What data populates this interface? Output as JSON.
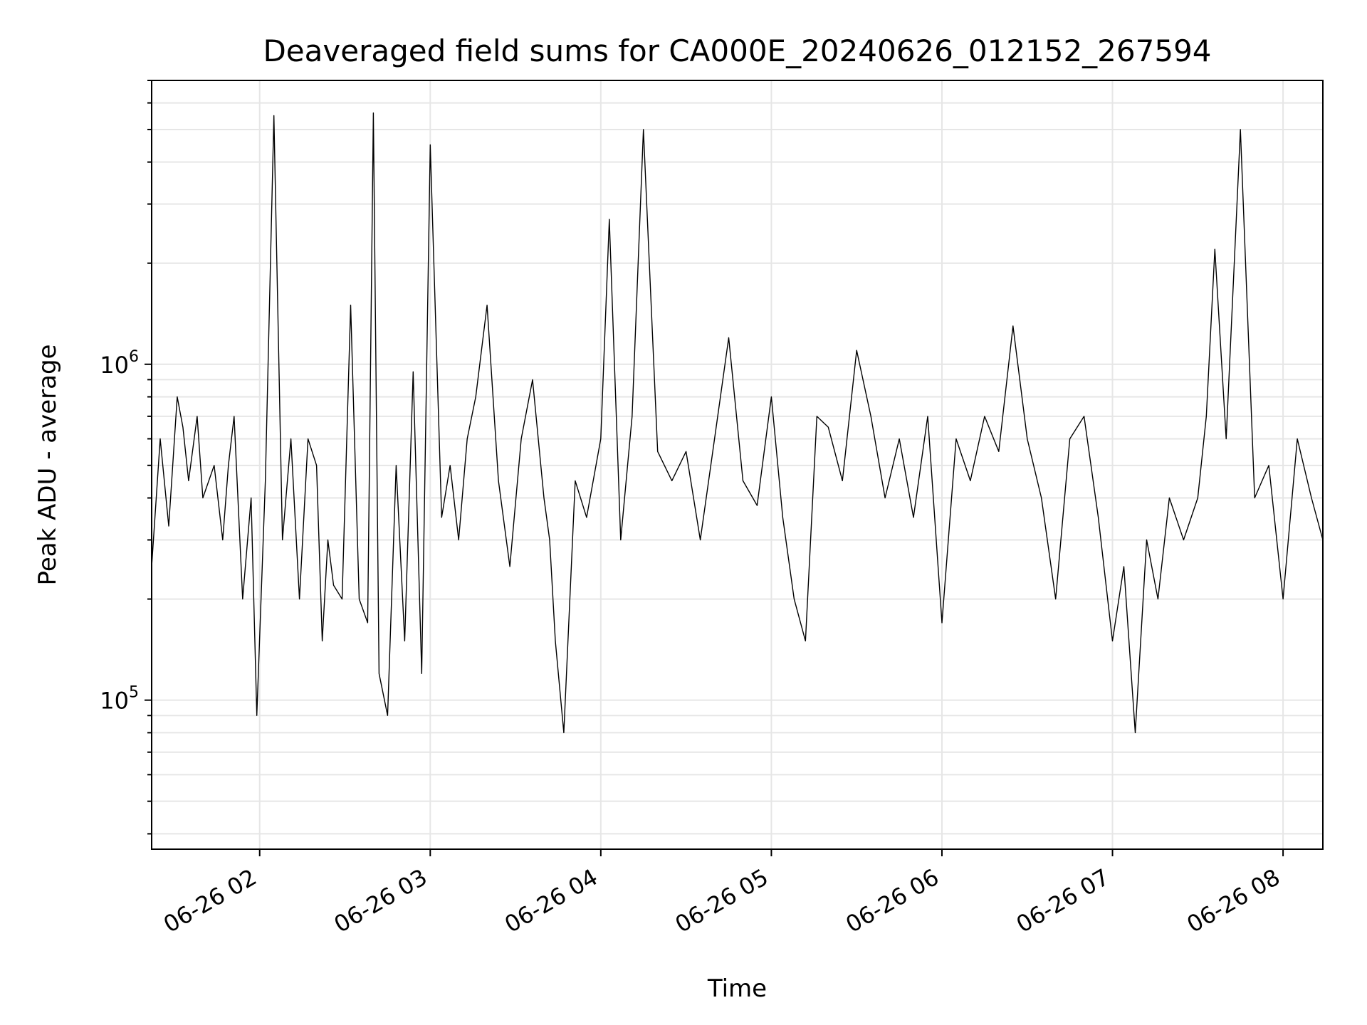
{
  "chart_data": {
    "type": "line",
    "title": "Deaveraged field sums for CA000E_20240626_012152_267594",
    "xlabel": "Time",
    "ylabel": "Peak ADU - average",
    "x_axis": {
      "type": "time",
      "range": [
        "2024-06-26 01:22",
        "2024-06-26 08:14"
      ],
      "tick_values": [
        "2024-06-26 02:00",
        "2024-06-26 03:00",
        "2024-06-26 04:00",
        "2024-06-26 05:00",
        "2024-06-26 06:00",
        "2024-06-26 07:00",
        "2024-06-26 08:00"
      ],
      "tick_labels": [
        "06-26 02",
        "06-26 03",
        "06-26 04",
        "06-26 05",
        "06-26 06",
        "06-26 07",
        "06-26 08"
      ]
    },
    "y_axis": {
      "scale": "log",
      "range": [
        36000,
        7000000
      ],
      "major_ticks": [
        {
          "value": 100000,
          "base": "10",
          "exp": "5"
        },
        {
          "value": 1000000,
          "base": "10",
          "exp": "6"
        }
      ]
    },
    "grid": true,
    "legend": "none",
    "series": [
      {
        "color": "#000000",
        "x": [
          "2024-06-26 01:22",
          "2024-06-26 01:25",
          "2024-06-26 01:28",
          "2024-06-26 01:31",
          "2024-06-26 01:33",
          "2024-06-26 01:35",
          "2024-06-26 01:38",
          "2024-06-26 01:40",
          "2024-06-26 01:44",
          "2024-06-26 01:47",
          "2024-06-26 01:49",
          "2024-06-26 01:51",
          "2024-06-26 01:54",
          "2024-06-26 01:57",
          "2024-06-26 01:59",
          "2024-06-26 02:02",
          "2024-06-26 02:05",
          "2024-06-26 02:08",
          "2024-06-26 02:11",
          "2024-06-26 02:14",
          "2024-06-26 02:17",
          "2024-06-26 02:20",
          "2024-06-26 02:22",
          "2024-06-26 02:24",
          "2024-06-26 02:26",
          "2024-06-26 02:29",
          "2024-06-26 02:32",
          "2024-06-26 02:35",
          "2024-06-26 02:38",
          "2024-06-26 02:40",
          "2024-06-26 02:42",
          "2024-06-26 02:45",
          "2024-06-26 02:48",
          "2024-06-26 02:51",
          "2024-06-26 02:54",
          "2024-06-26 02:57",
          "2024-06-26 03:00",
          "2024-06-26 03:04",
          "2024-06-26 03:07",
          "2024-06-26 03:10",
          "2024-06-26 03:13",
          "2024-06-26 03:16",
          "2024-06-26 03:20",
          "2024-06-26 03:24",
          "2024-06-26 03:28",
          "2024-06-26 03:32",
          "2024-06-26 03:36",
          "2024-06-26 03:40",
          "2024-06-26 03:42",
          "2024-06-26 03:44",
          "2024-06-26 03:47",
          "2024-06-26 03:51",
          "2024-06-26 03:55",
          "2024-06-26 04:00",
          "2024-06-26 04:03",
          "2024-06-26 04:07",
          "2024-06-26 04:11",
          "2024-06-26 04:15",
          "2024-06-26 04:20",
          "2024-06-26 04:25",
          "2024-06-26 04:30",
          "2024-06-26 04:35",
          "2024-06-26 04:40",
          "2024-06-26 04:45",
          "2024-06-26 04:50",
          "2024-06-26 04:55",
          "2024-06-26 05:00",
          "2024-06-26 05:04",
          "2024-06-26 05:08",
          "2024-06-26 05:12",
          "2024-06-26 05:16",
          "2024-06-26 05:20",
          "2024-06-26 05:25",
          "2024-06-26 05:30",
          "2024-06-26 05:35",
          "2024-06-26 05:40",
          "2024-06-26 05:45",
          "2024-06-26 05:50",
          "2024-06-26 05:55",
          "2024-06-26 06:00",
          "2024-06-26 06:05",
          "2024-06-26 06:10",
          "2024-06-26 06:15",
          "2024-06-26 06:20",
          "2024-06-26 06:25",
          "2024-06-26 06:30",
          "2024-06-26 06:35",
          "2024-06-26 06:40",
          "2024-06-26 06:45",
          "2024-06-26 06:50",
          "2024-06-26 06:55",
          "2024-06-26 07:00",
          "2024-06-26 07:04",
          "2024-06-26 07:08",
          "2024-06-26 07:12",
          "2024-06-26 07:16",
          "2024-06-26 07:20",
          "2024-06-26 07:25",
          "2024-06-26 07:30",
          "2024-06-26 07:33",
          "2024-06-26 07:36",
          "2024-06-26 07:40",
          "2024-06-26 07:45",
          "2024-06-26 07:50",
          "2024-06-26 07:55",
          "2024-06-26 08:00",
          "2024-06-26 08:05",
          "2024-06-26 08:10",
          "2024-06-26 08:14"
        ],
        "values": [
          250000,
          600000,
          330000,
          800000,
          650000,
          450000,
          700000,
          400000,
          500000,
          300000,
          500000,
          700000,
          200000,
          400000,
          90000,
          450000,
          5500000,
          300000,
          600000,
          200000,
          600000,
          500000,
          150000,
          300000,
          220000,
          200000,
          1500000,
          200000,
          170000,
          5600000,
          120000,
          90000,
          500000,
          150000,
          950000,
          120000,
          4500000,
          350000,
          500000,
          300000,
          600000,
          800000,
          1500000,
          450000,
          250000,
          600000,
          900000,
          400000,
          300000,
          150000,
          80000,
          450000,
          350000,
          600000,
          2700000,
          300000,
          700000,
          5000000,
          550000,
          450000,
          550000,
          300000,
          600000,
          1200000,
          450000,
          380000,
          800000,
          350000,
          200000,
          150000,
          700000,
          650000,
          450000,
          1100000,
          700000,
          400000,
          600000,
          350000,
          700000,
          170000,
          600000,
          450000,
          700000,
          550000,
          1300000,
          600000,
          400000,
          200000,
          600000,
          700000,
          350000,
          150000,
          250000,
          80000,
          300000,
          200000,
          400000,
          300000,
          400000,
          700000,
          2200000,
          600000,
          5000000,
          400000,
          500000,
          200000,
          600000,
          400000,
          300000
        ]
      }
    ]
  }
}
